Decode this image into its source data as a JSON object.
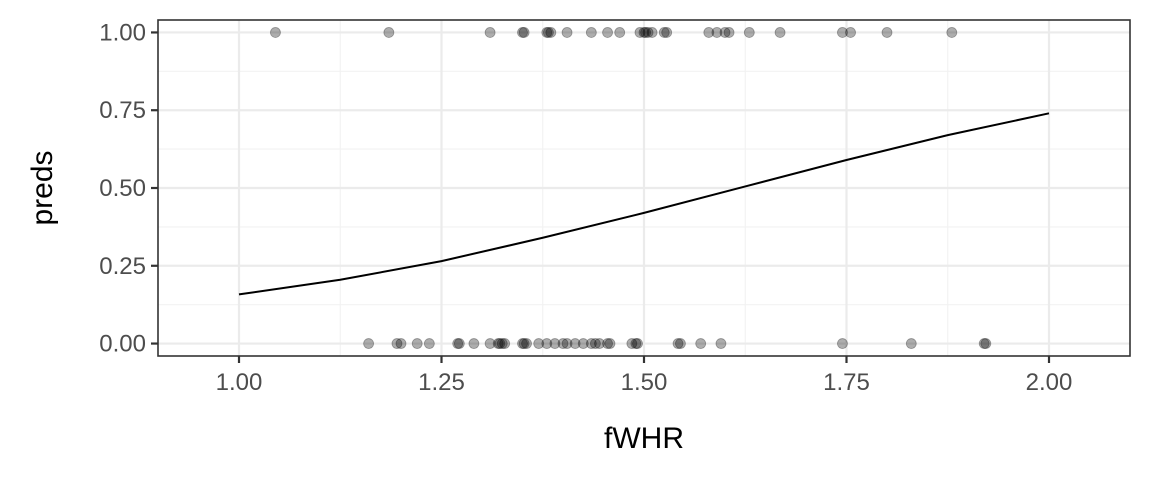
{
  "chart_data": {
    "type": "scatter",
    "title": "",
    "xlabel": "fWHR",
    "ylabel": "preds",
    "xlim": [
      0.9,
      2.1
    ],
    "ylim": [
      -0.04,
      1.04
    ],
    "x_ticks": [
      1.0,
      1.25,
      1.5,
      1.75,
      2.0
    ],
    "x_tick_labels": [
      "1.00",
      "1.25",
      "1.50",
      "1.75",
      "2.00"
    ],
    "y_ticks": [
      0.0,
      0.25,
      0.5,
      0.75,
      1.0
    ],
    "y_tick_labels": [
      "0.00",
      "0.25",
      "0.50",
      "0.75",
      "1.00"
    ],
    "grid": true,
    "legend": "none",
    "points": {
      "name": "",
      "color": "#000000",
      "opacity": 0.32,
      "x": [
        1.045,
        1.185,
        1.31,
        1.35,
        1.352,
        1.38,
        1.382,
        1.385,
        1.405,
        1.435,
        1.455,
        1.47,
        1.495,
        1.5,
        1.502,
        1.505,
        1.51,
        1.525,
        1.528,
        1.58,
        1.59,
        1.6,
        1.605,
        1.63,
        1.668,
        1.745,
        1.755,
        1.8,
        1.88,
        1.16,
        1.195,
        1.2,
        1.22,
        1.235,
        1.27,
        1.272,
        1.29,
        1.31,
        1.32,
        1.322,
        1.325,
        1.328,
        1.35,
        1.352,
        1.355,
        1.37,
        1.38,
        1.39,
        1.4,
        1.405,
        1.415,
        1.425,
        1.435,
        1.44,
        1.445,
        1.455,
        1.458,
        1.485,
        1.49,
        1.492,
        1.542,
        1.545,
        1.57,
        1.595,
        1.745,
        1.83,
        1.92,
        1.922
      ],
      "y": [
        1,
        1,
        1,
        1,
        1,
        1,
        1,
        1,
        1,
        1,
        1,
        1,
        1,
        1,
        1,
        1,
        1,
        1,
        1,
        1,
        1,
        1,
        1,
        1,
        1,
        1,
        1,
        1,
        1,
        0,
        0,
        0,
        0,
        0,
        0,
        0,
        0,
        0,
        0,
        0,
        0,
        0,
        0,
        0,
        0,
        0,
        0,
        0,
        0,
        0,
        0,
        0,
        0,
        0,
        0,
        0,
        0,
        0,
        0,
        0,
        0,
        0,
        0,
        0,
        0,
        0,
        0,
        0
      ]
    },
    "fit": {
      "name": "",
      "color": "#000000",
      "x": [
        1.0,
        1.125,
        1.25,
        1.375,
        1.5,
        1.625,
        1.75,
        1.875,
        2.0
      ],
      "y": [
        0.158,
        0.205,
        0.265,
        0.34,
        0.42,
        0.505,
        0.59,
        0.67,
        0.74
      ]
    }
  }
}
